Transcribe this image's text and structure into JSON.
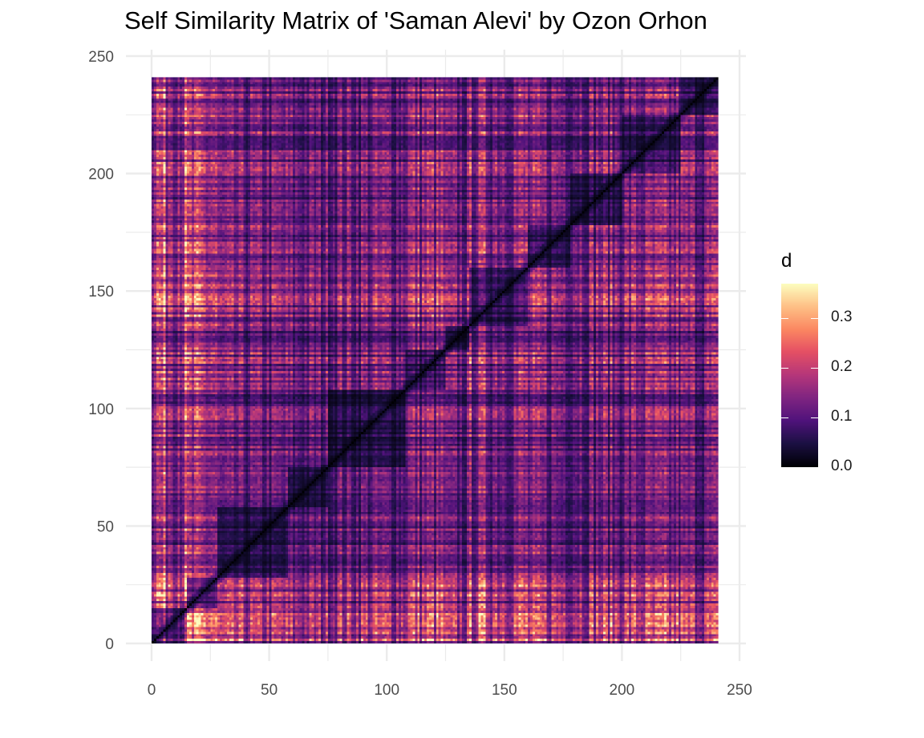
{
  "chart_data": {
    "type": "heatmap",
    "title": "Self Similarity Matrix of 'Saman Alevi' by Ozon Orhon",
    "xlabel": "",
    "ylabel": "",
    "xlim": [
      0,
      250
    ],
    "ylim": [
      0,
      250
    ],
    "x_ticks": [
      "0",
      "50",
      "100",
      "150",
      "200",
      "250"
    ],
    "y_ticks": [
      "0",
      "50",
      "100",
      "150",
      "200",
      "250"
    ],
    "matrix_size": 241,
    "grid": true,
    "colorscale": "magma",
    "legend": {
      "title": "d",
      "position": "right",
      "range": [
        0,
        0.37
      ],
      "ticks": [
        "0.0",
        "0.1",
        "0.2",
        "0.3"
      ]
    },
    "segment_boundaries": [
      0,
      15,
      28,
      58,
      75,
      108,
      125,
      135,
      160,
      178,
      200,
      225,
      241
    ],
    "segment_profile": [
      0.27,
      0.2,
      0.1,
      0.09,
      0.11,
      0.15,
      0.09,
      0.16,
      0.12,
      0.13,
      0.13,
      0.12
    ],
    "colors": {
      "background": "#ffffff",
      "gridline": "#ebebeb",
      "tick_text": "#4d4d4d",
      "title_text": "#000000"
    }
  }
}
